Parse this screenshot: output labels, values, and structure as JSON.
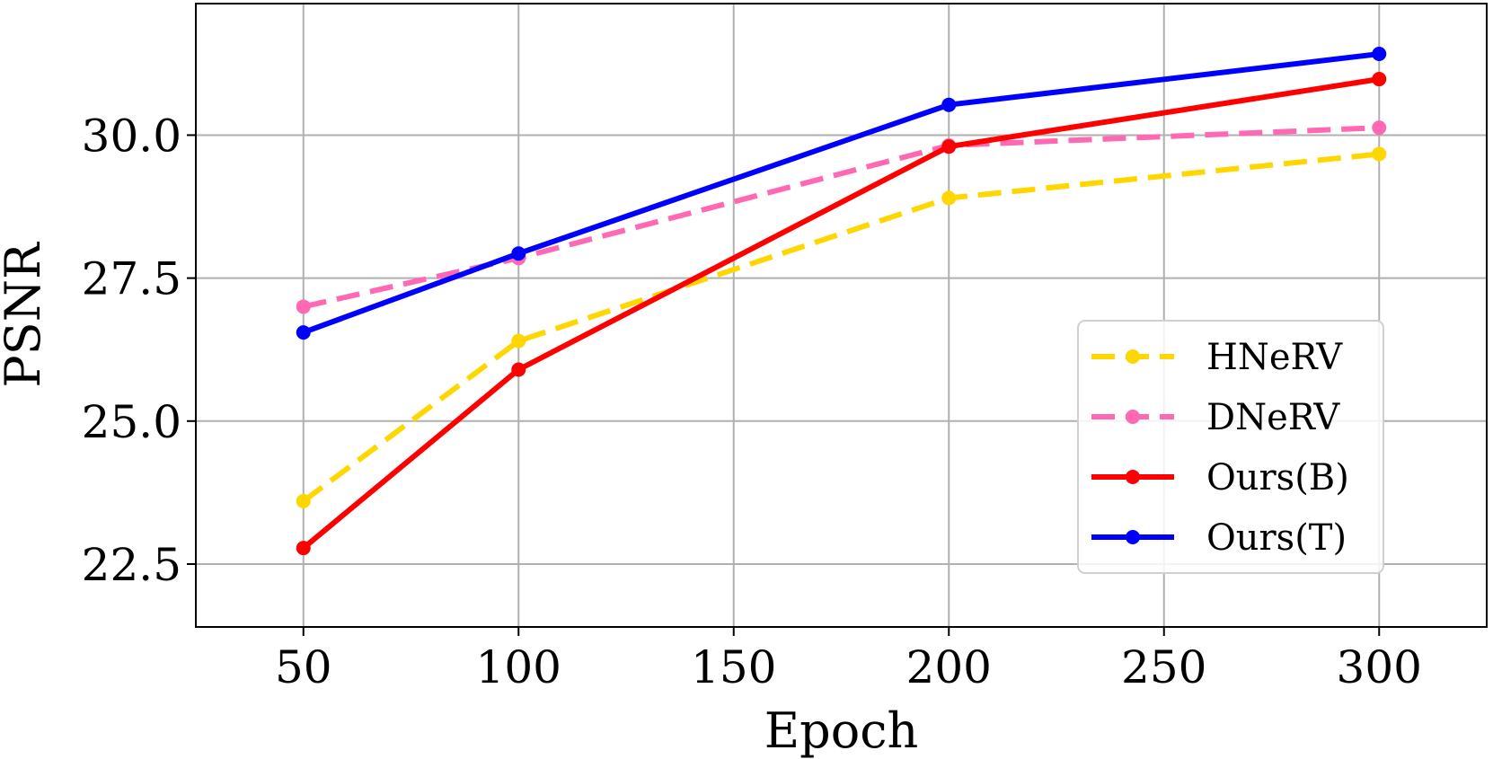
{
  "chart_data": {
    "type": "line",
    "title": "",
    "xlabel": "Epoch",
    "ylabel": "PSNR",
    "xlim": [
      25,
      325
    ],
    "ylim": [
      21.4,
      32.3
    ],
    "xticks": [
      50,
      100,
      150,
      200,
      250,
      300
    ],
    "yticks": [
      22.5,
      25.0,
      27.5,
      30.0
    ],
    "xtick_labels": [
      "50",
      "100",
      "150",
      "200",
      "250",
      "300"
    ],
    "ytick_labels": [
      "22.5",
      "25.0",
      "27.5",
      "30.0"
    ],
    "grid": true,
    "legend_position": "lower-right",
    "x": [
      50,
      100,
      200,
      300
    ],
    "series": [
      {
        "name": "HNeRV",
        "values": [
          23.6,
          26.4,
          28.9,
          29.67
        ],
        "color": "#ffd700",
        "dashed": true
      },
      {
        "name": "DNeRV",
        "values": [
          27.0,
          27.85,
          29.82,
          30.13
        ],
        "color": "#ff69b4",
        "dashed": true
      },
      {
        "name": "Ours(B)",
        "values": [
          22.78,
          25.9,
          29.8,
          30.98
        ],
        "color": "#ff0000",
        "dashed": false
      },
      {
        "name": "Ours(T)",
        "values": [
          26.55,
          27.93,
          30.53,
          31.42
        ],
        "color": "#0000ff",
        "dashed": false
      }
    ]
  }
}
